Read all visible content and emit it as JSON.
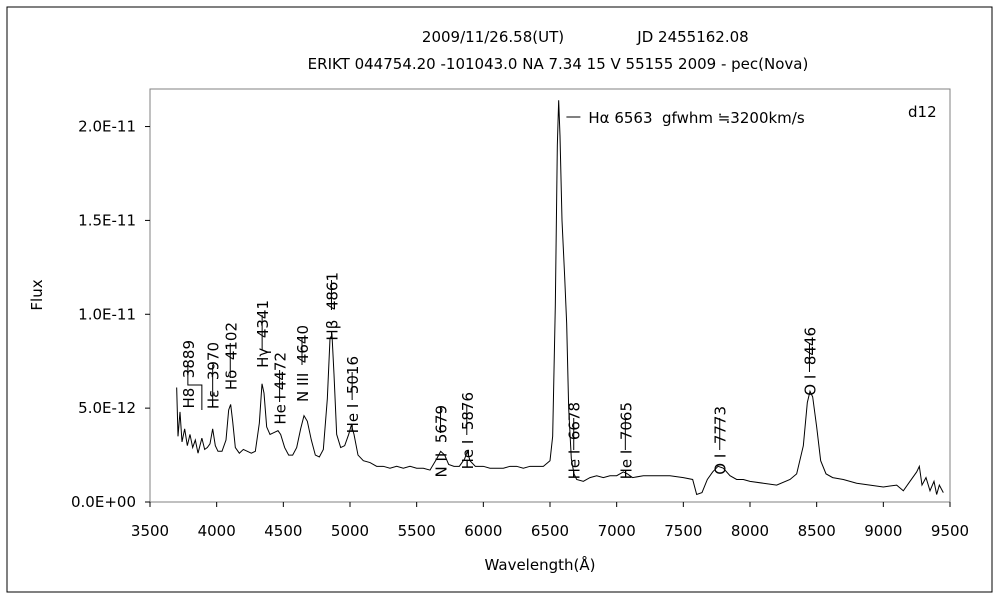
{
  "chart_data": {
    "type": "line",
    "title": "2009/11/26.58(UT)",
    "jd": "JD 2455162.08",
    "subtitle": "ERIKT 044754.20 -101043.0 NA 7.34 15 V 55155 2009 - pec(Nova)",
    "xlabel": "Wavelength(Å)",
    "ylabel": "Flux",
    "tag": "d12",
    "xlim": [
      3500,
      9500
    ],
    "xticks": [
      3500,
      4000,
      4500,
      5000,
      5500,
      6000,
      6500,
      7000,
      7500,
      8000,
      8500,
      9000,
      9500
    ],
    "ylim": [
      0,
      2.2e-11
    ],
    "yticks": [
      {
        "value": 0,
        "label": "0.0E+00"
      },
      {
        "value": 5e-12,
        "label": "5.0E-12"
      },
      {
        "value": 1e-11,
        "label": "1.0E-11"
      },
      {
        "value": 1.5e-11,
        "label": "1.5E-11"
      },
      {
        "value": 2e-11,
        "label": "2.0E-11"
      }
    ],
    "grid": false,
    "x": [
      3700,
      3710,
      3725,
      3740,
      3760,
      3780,
      3800,
      3820,
      3840,
      3860,
      3889,
      3910,
      3930,
      3950,
      3970,
      3990,
      4010,
      4040,
      4070,
      4090,
      4105,
      4120,
      4140,
      4170,
      4200,
      4230,
      4260,
      4290,
      4320,
      4340,
      4355,
      4375,
      4400,
      4430,
      4460,
      4480,
      4510,
      4540,
      4570,
      4600,
      4630,
      4655,
      4680,
      4710,
      4740,
      4770,
      4800,
      4830,
      4850,
      4865,
      4880,
      4900,
      4930,
      4960,
      4990,
      5010,
      5030,
      5060,
      5100,
      5150,
      5200,
      5250,
      5300,
      5350,
      5400,
      5450,
      5500,
      5550,
      5600,
      5650,
      5680,
      5710,
      5740,
      5780,
      5820,
      5860,
      5880,
      5900,
      5940,
      6000,
      6050,
      6100,
      6150,
      6200,
      6250,
      6300,
      6350,
      6400,
      6450,
      6500,
      6520,
      6540,
      6555,
      6565,
      6575,
      6590,
      6610,
      6625,
      6640,
      6660,
      6680,
      6700,
      6750,
      6800,
      6850,
      6900,
      6950,
      7000,
      7050,
      7080,
      7120,
      7200,
      7300,
      7400,
      7500,
      7570,
      7600,
      7640,
      7680,
      7720,
      7760,
      7800,
      7850,
      7900,
      7950,
      8000,
      8100,
      8200,
      8300,
      8350,
      8400,
      8430,
      8450,
      8470,
      8500,
      8530,
      8570,
      8620,
      8700,
      8800,
      8900,
      9000,
      9100,
      9150,
      9200,
      9250,
      9270,
      9290,
      9320,
      9350,
      9380,
      9400,
      9420,
      9450
    ],
    "series": [
      {
        "name": "Flux",
        "color": "#000000",
        "values": [
          6.1e-12,
          3.5e-12,
          4.8e-12,
          3.2e-12,
          3.9e-12,
          3e-12,
          3.6e-12,
          2.9e-12,
          3.3e-12,
          2.6e-12,
          3.4e-12,
          2.8e-12,
          2.9e-12,
          3.1e-12,
          3.9e-12,
          3e-12,
          2.7e-12,
          2.7e-12,
          3.3e-12,
          4.9e-12,
          5.2e-12,
          4.3e-12,
          2.9e-12,
          2.6e-12,
          2.8e-12,
          2.7e-12,
          2.6e-12,
          2.7e-12,
          4.2e-12,
          6.3e-12,
          5.8e-12,
          4e-12,
          3.6e-12,
          3.7e-12,
          3.8e-12,
          3.6e-12,
          2.9e-12,
          2.5e-12,
          2.5e-12,
          2.9e-12,
          3.9e-12,
          4.6e-12,
          4.3e-12,
          3.3e-12,
          2.5e-12,
          2.4e-12,
          2.8e-12,
          5.5e-12,
          8.7e-12,
          8.9e-12,
          6.8e-12,
          3.6e-12,
          2.9e-12,
          3e-12,
          3.6e-12,
          4.1e-12,
          3.6e-12,
          2.5e-12,
          2.2e-12,
          2.1e-12,
          1.9e-12,
          1.9e-12,
          1.8e-12,
          1.9e-12,
          1.8e-12,
          1.9e-12,
          1.8e-12,
          1.8e-12,
          1.7e-12,
          2.3e-12,
          2.7e-12,
          2.5e-12,
          2e-12,
          1.9e-12,
          1.9e-12,
          2.3e-12,
          2.7e-12,
          2.2e-12,
          1.9e-12,
          1.9e-12,
          1.8e-12,
          1.8e-12,
          1.8e-12,
          1.9e-12,
          1.9e-12,
          1.8e-12,
          1.9e-12,
          1.9e-12,
          1.9e-12,
          2.2e-12,
          3.5e-12,
          1.05e-11,
          1.9e-11,
          2.14e-11,
          1.95e-11,
          1.5e-11,
          1.2e-11,
          9.5e-12,
          5e-12,
          2.3e-12,
          1.5e-12,
          1.2e-12,
          1.1e-12,
          1.3e-12,
          1.4e-12,
          1.3e-12,
          1.4e-12,
          1.4e-12,
          1.6e-12,
          1.5e-12,
          1.3e-12,
          1.4e-12,
          1.4e-12,
          1.4e-12,
          1.3e-12,
          1.2e-12,
          4e-13,
          5e-13,
          1.2e-12,
          1.6e-12,
          1.9e-12,
          1.8e-12,
          1.4e-12,
          1.2e-12,
          1.2e-12,
          1.1e-12,
          1e-12,
          9e-13,
          1.2e-12,
          1.5e-12,
          3e-12,
          5.3e-12,
          5.9e-12,
          5.6e-12,
          4e-12,
          2.2e-12,
          1.5e-12,
          1.3e-12,
          1.2e-12,
          1e-12,
          9e-13,
          8e-13,
          9e-13,
          6e-13,
          1.1e-12,
          1.6e-12,
          1.9e-12,
          9e-13,
          1.3e-12,
          6e-13,
          1.1e-12,
          4e-13,
          9e-13,
          5e-13
        ]
      }
    ],
    "annotations": [
      {
        "text": "H8  3889",
        "x": 3889
      },
      {
        "text": "Hε  3970",
        "x": 3970
      },
      {
        "text": "Hδ  4102",
        "x": 4102
      },
      {
        "text": "Hγ  4341",
        "x": 4341
      },
      {
        "text": "He I 4472",
        "x": 4472
      },
      {
        "text": "N III  4640",
        "x": 4640
      },
      {
        "text": "Hβ  4861",
        "x": 4861
      },
      {
        "text": "He I  5016",
        "x": 5016
      },
      {
        "text": "N II  5679",
        "x": 5679
      },
      {
        "text": "He I  5876",
        "x": 5876
      },
      {
        "text": "He I  6678",
        "x": 6678
      },
      {
        "text": "He I  7065",
        "x": 7065
      },
      {
        "text": "O I  7773",
        "x": 7773
      },
      {
        "text": "O I  8446",
        "x": 8446
      },
      {
        "text": "Hα 6563  gfwhm ≒3200km/s",
        "x": 6563
      }
    ]
  }
}
